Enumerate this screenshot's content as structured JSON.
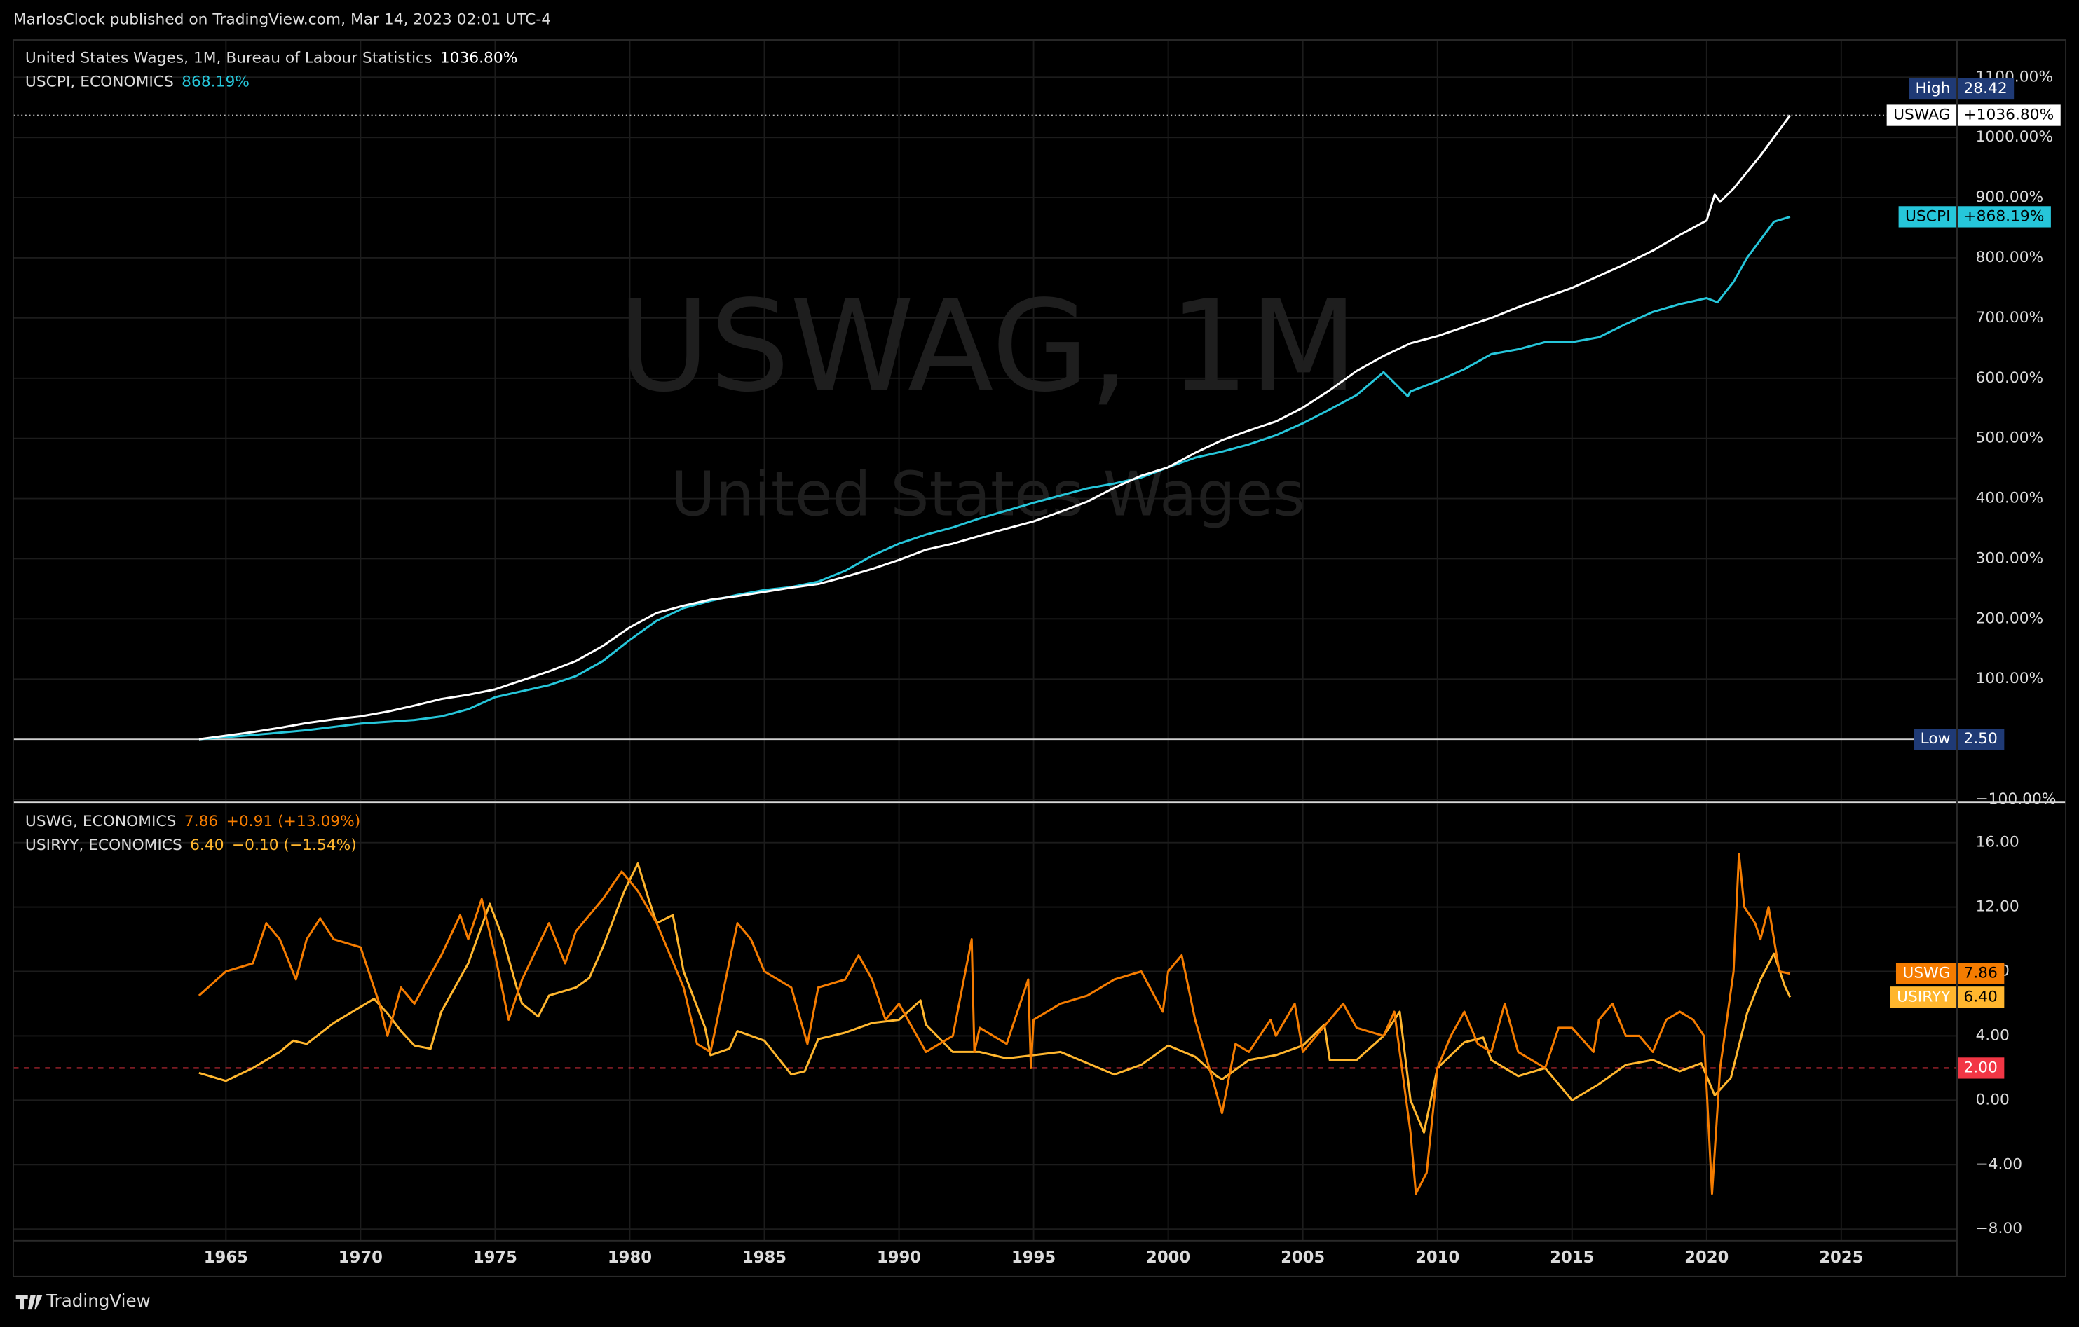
{
  "header": {
    "text": "MarlosClock published on TradingView.com, Mar 14, 2023 02:01 UTC-4"
  },
  "footer": {
    "brand": "TradingView"
  },
  "chart_data": [
    {
      "type": "line",
      "title": "USWAG, 1M",
      "subtitle": "United States Wages",
      "xlim": [
        1957.1,
        2029.3
      ],
      "ylim": [
        -102,
        1162
      ],
      "grid": true,
      "yticks": [
        {
          "value": -100,
          "label": "−100.00%"
        },
        {
          "value": 100,
          "label": "100.00%"
        },
        {
          "value": 200,
          "label": "200.00%"
        },
        {
          "value": 300,
          "label": "300.00%"
        },
        {
          "value": 400,
          "label": "400.00%"
        },
        {
          "value": 500,
          "label": "500.00%"
        },
        {
          "value": 600,
          "label": "600.00%"
        },
        {
          "value": 700,
          "label": "700.00%"
        },
        {
          "value": 800,
          "label": "800.00%"
        },
        {
          "value": 900,
          "label": "900.00%"
        },
        {
          "value": 1000,
          "label": "1000.00%"
        },
        {
          "value": 1100,
          "label": "1100.00%"
        }
      ],
      "high": {
        "label": "High",
        "value": "28.42"
      },
      "low": {
        "label": "Low",
        "value": "2.50"
      },
      "series": [
        {
          "name": "United States Wages, 1M, Bureau of Labour Statistics",
          "legend_value": "1036.80%",
          "tag": "USWAG",
          "tag_value": "+1036.80%",
          "color": "#ffffff",
          "x": [
            1964,
            1965,
            1966,
            1967,
            1968,
            1969,
            1970,
            1971,
            1972,
            1973,
            1974,
            1975,
            1976,
            1977,
            1978,
            1979,
            1980,
            1981,
            1982,
            1983,
            1984,
            1985,
            1986,
            1987,
            1988,
            1989,
            1990,
            1991,
            1992,
            1993,
            1994,
            1995,
            1996,
            1997,
            1998,
            1999,
            2000,
            2001,
            2002,
            2003,
            2004,
            2005,
            2006,
            2007,
            2008,
            2009,
            2010,
            2011,
            2012,
            2013,
            2014,
            2015,
            2016,
            2017,
            2018,
            2019,
            2020,
            2020.3,
            2020.5,
            2021,
            2022,
            2023.1
          ],
          "values": [
            0,
            6,
            12,
            19,
            27,
            33,
            38,
            46,
            56,
            67,
            74,
            83,
            98,
            113,
            130,
            155,
            186,
            210,
            222,
            232,
            238,
            245,
            252,
            258,
            270,
            283,
            298,
            315,
            325,
            338,
            350,
            362,
            378,
            395,
            418,
            438,
            452,
            476,
            497,
            513,
            528,
            551,
            580,
            612,
            637,
            658,
            670,
            685,
            700,
            718,
            734,
            750,
            770,
            790,
            812,
            838,
            862,
            905,
            893,
            915,
            970,
            1036.8
          ]
        },
        {
          "name": "USCPI, ECONOMICS",
          "legend_value": "868.19%",
          "tag": "USCPI",
          "tag_value": "+868.19%",
          "color": "#26c6da",
          "x": [
            1964,
            1966,
            1968,
            1970,
            1972,
            1973,
            1974,
            1975,
            1976,
            1977,
            1978,
            1979,
            1980,
            1981,
            1982,
            1983,
            1984,
            1985,
            1986,
            1987,
            1988,
            1989,
            1990,
            1991,
            1992,
            1993,
            1994,
            1995,
            1996,
            1997,
            1998,
            1999,
            2000,
            2001,
            2002,
            2003,
            2004,
            2005,
            2006,
            2007,
            2008,
            2008.9,
            2009,
            2010,
            2011,
            2012,
            2013,
            2014,
            2015,
            2016,
            2017,
            2018,
            2019,
            2020,
            2020.4,
            2021,
            2021.5,
            2022,
            2022.5,
            2023.1
          ],
          "values": [
            0,
            7,
            15,
            26,
            32,
            38,
            50,
            70,
            80,
            90,
            105,
            130,
            165,
            197,
            218,
            230,
            240,
            248,
            253,
            262,
            280,
            305,
            325,
            340,
            352,
            367,
            380,
            393,
            405,
            417,
            425,
            435,
            452,
            468,
            478,
            490,
            505,
            525,
            548,
            572,
            610,
            570,
            578,
            595,
            615,
            640,
            648,
            660,
            660,
            668,
            690,
            710,
            723,
            733,
            726,
            760,
            800,
            830,
            860,
            868.19
          ]
        }
      ]
    },
    {
      "type": "line",
      "xlim": [
        1957.1,
        2029.3
      ],
      "ylim": [
        -8.72,
        18.44
      ],
      "grid": true,
      "xticks": [
        1965,
        1970,
        1975,
        1980,
        1985,
        1990,
        1995,
        2000,
        2005,
        2010,
        2015,
        2020,
        2025
      ],
      "yticks": [
        {
          "value": -8,
          "label": "−8.00"
        },
        {
          "value": -4,
          "label": "−4.00"
        },
        {
          "value": 0,
          "label": "0.00"
        },
        {
          "value": 4,
          "label": "4.00"
        },
        {
          "value": 8,
          "label": "8.00"
        },
        {
          "value": 12,
          "label": "12.00"
        },
        {
          "value": 16,
          "label": "16.00"
        }
      ],
      "reference_line": {
        "value": 2,
        "label": "2.00",
        "color": "#f23645"
      },
      "series": [
        {
          "name": "USWG, ECONOMICS",
          "legend_value": "7.86",
          "legend_change": "+0.91 (+13.09%)",
          "tag": "USWG",
          "tag_value": "7.86",
          "color": "#f57c00",
          "x": [
            1964,
            1965,
            1966,
            1966.5,
            1967,
            1967.6,
            1968,
            1968.5,
            1969,
            1970,
            1970.7,
            1971,
            1971.5,
            1972,
            1973,
            1973.7,
            1974,
            1974.5,
            1975,
            1975.5,
            1976,
            1977,
            1977.6,
            1978,
            1979,
            1979.7,
            1980.3,
            1981,
            1981.5,
            1982,
            1982.5,
            1983,
            1983.5,
            1984,
            1984.5,
            1985,
            1986,
            1986.6,
            1987,
            1988,
            1988.5,
            1989,
            1989.5,
            1990,
            1991,
            1992,
            1992.7,
            1992.8,
            1993,
            1994,
            1994.8,
            1994.9,
            1995,
            1996,
            1997,
            1998,
            1999,
            1999.8,
            2000,
            2000.5,
            2001,
            2001.7,
            2002,
            2002.5,
            2003,
            2003.8,
            2004,
            2004.7,
            2005,
            2006,
            2006.5,
            2007,
            2008,
            2008.4,
            2009,
            2009.2,
            2009.6,
            2010,
            2010.5,
            2011,
            2011.5,
            2012,
            2012.5,
            2013,
            2014,
            2014.5,
            2015,
            2015.8,
            2016,
            2016.5,
            2017,
            2017.5,
            2018,
            2018.5,
            2019,
            2019.5,
            2019.9,
            2020.2,
            2020.5,
            2021,
            2021.2,
            2021.4,
            2021.8,
            2022,
            2022.3,
            2022.7,
            2023.1
          ],
          "values": [
            6.5,
            8,
            8.5,
            11,
            10,
            7.5,
            10,
            11.3,
            10,
            9.5,
            6,
            4,
            7,
            6,
            9,
            11.5,
            10,
            12.5,
            9,
            5,
            7.5,
            11,
            8.5,
            10.5,
            12.5,
            14.2,
            13,
            11,
            9,
            7,
            3.5,
            3,
            7,
            11,
            10,
            8,
            7,
            3.5,
            7,
            7.5,
            9,
            7.5,
            5,
            6,
            3,
            4,
            10,
            3,
            4.5,
            3.5,
            7.5,
            2,
            5,
            6,
            6.5,
            7.5,
            8,
            5.5,
            8,
            9,
            5,
            1,
            -0.8,
            3.5,
            3,
            5,
            4,
            6,
            3,
            5,
            6,
            4.5,
            4,
            5.5,
            -2,
            -5.8,
            -4.5,
            2,
            4,
            5.5,
            3.5,
            3,
            6,
            3,
            2,
            4.5,
            4.5,
            3,
            5,
            6,
            4,
            4,
            3,
            5,
            5.5,
            5,
            4,
            -5.8,
            2,
            8,
            15.3,
            12,
            11,
            10,
            12,
            8,
            7.86
          ]
        },
        {
          "name": "USIRYY, ECONOMICS",
          "legend_value": "6.40",
          "legend_change": "−0.10 (−1.54%)",
          "tag": "USIRYY",
          "tag_value": "6.40",
          "color": "#ffb62e",
          "x": [
            1964,
            1965,
            1966,
            1967,
            1967.5,
            1968,
            1969,
            1970,
            1970.5,
            1971,
            1971.5,
            1972,
            1972.6,
            1973,
            1974,
            1974.8,
            1975.3,
            1975.8,
            1976,
            1976.6,
            1977,
            1978,
            1978.5,
            1979,
            1979.8,
            1980.3,
            1980.7,
            1981,
            1981.6,
            1982,
            1982.8,
            1983,
            1983.7,
            1984,
            1985,
            1986,
            1986.5,
            1987,
            1988,
            1989,
            1990,
            1990.8,
            1991,
            1992,
            1993,
            1994,
            1995,
            1996,
            1997,
            1998,
            1999,
            2000,
            2001,
            2001.8,
            2002,
            2003,
            2004,
            2005,
            2005.8,
            2006,
            2007,
            2008,
            2008.6,
            2009,
            2009.5,
            2010,
            2011,
            2011.7,
            2012,
            2013,
            2014,
            2015,
            2016,
            2017,
            2018,
            2019,
            2019.8,
            2020.3,
            2020.9,
            2021.5,
            2022,
            2022.5,
            2022.9,
            2023.1
          ],
          "values": [
            1.7,
            1.2,
            2,
            3,
            3.7,
            3.5,
            4.8,
            5.8,
            6.3,
            5.4,
            4.3,
            3.4,
            3.2,
            5.5,
            8.5,
            12.2,
            10,
            7,
            6,
            5.2,
            6.5,
            7,
            7.6,
            9.5,
            13,
            14.7,
            12.5,
            11,
            11.5,
            8,
            4.5,
            2.8,
            3.2,
            4.3,
            3.7,
            1.6,
            1.8,
            3.8,
            4.2,
            4.8,
            5,
            6.2,
            4.7,
            3,
            3,
            2.6,
            2.8,
            3,
            2.3,
            1.6,
            2.2,
            3.4,
            2.7,
            1.5,
            1.3,
            2.5,
            2.8,
            3.4,
            4.7,
            2.5,
            2.5,
            4,
            5.5,
            0,
            -2,
            2,
            3.6,
            3.9,
            2.5,
            1.5,
            2,
            0,
            1,
            2.2,
            2.5,
            1.8,
            2.3,
            0.3,
            1.4,
            5.4,
            7.5,
            9.1,
            7.1,
            6.4
          ]
        }
      ]
    }
  ]
}
